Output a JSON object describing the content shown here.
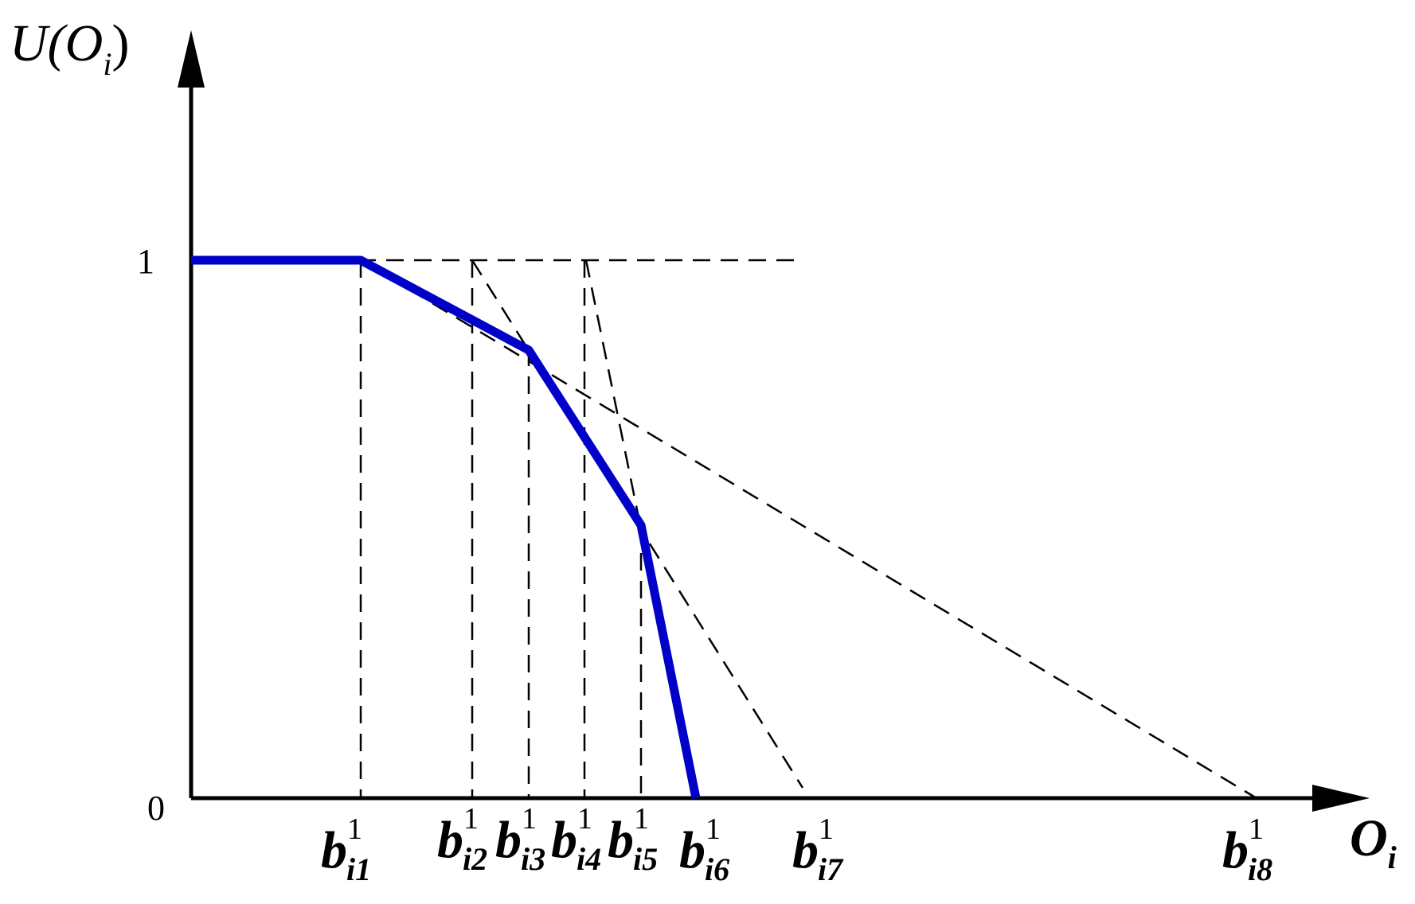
{
  "colors": {
    "curve": "#0000c8",
    "lines": "#000000",
    "background": "#ffffff"
  },
  "axes": {
    "y_label": {
      "main": "U(O",
      "sub": "i",
      "close": ")"
    },
    "x_label": {
      "main": "O",
      "sub": "i"
    },
    "y_ticks": [
      {
        "value": 0,
        "label": "0"
      },
      {
        "value": 1,
        "label": "1"
      }
    ]
  },
  "breakpoints": [
    {
      "base": "b",
      "sup": "1",
      "sub": "i1"
    },
    {
      "base": "b",
      "sup": "1",
      "sub": "i2"
    },
    {
      "base": "b",
      "sup": "1",
      "sub": "i3"
    },
    {
      "base": "b",
      "sup": "1",
      "sub": "i4"
    },
    {
      "base": "b",
      "sup": "1",
      "sub": "i5"
    },
    {
      "base": "b",
      "sup": "1",
      "sub": "i6"
    },
    {
      "base": "b",
      "sup": "1",
      "sub": "i7"
    },
    {
      "base": "b",
      "sup": "1",
      "sub": "i8"
    }
  ]
}
